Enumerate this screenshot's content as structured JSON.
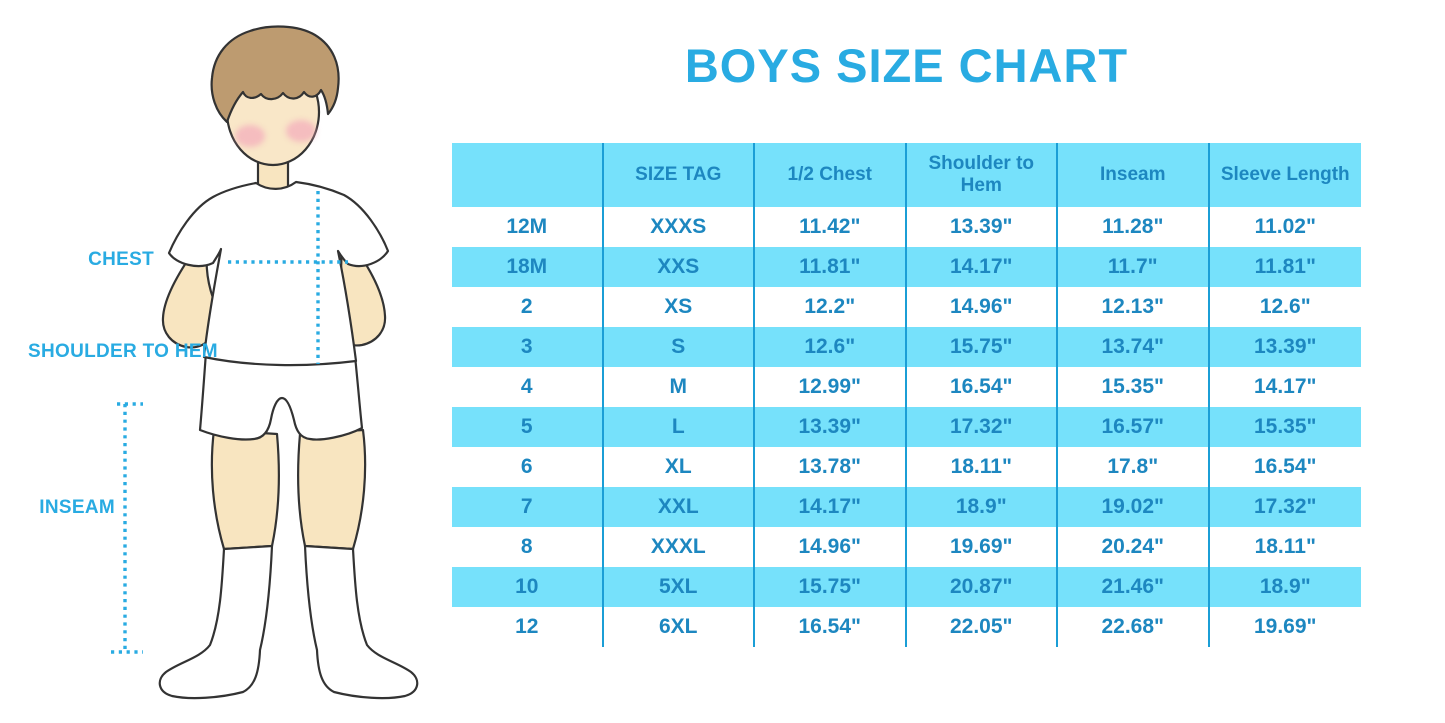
{
  "title": "BOYS SIZE CHART",
  "figure": {
    "labels": {
      "chest": "CHEST",
      "shoulder_to_hem": "SHOULDER TO HEM",
      "inseam": "INSEAM"
    }
  },
  "colors": {
    "accent_blue": "#29abe2",
    "table_text_blue": "#1d87c0",
    "row_band_blue": "#76e1fb",
    "column_separator_blue": "#1b9ed6",
    "skin": "#f8e5c0",
    "hair": "#bd9b70",
    "blush": "#f3a6ba",
    "outline": "#333333"
  },
  "chart_data": {
    "type": "table",
    "title": "BOYS SIZE CHART",
    "columns": [
      "",
      "SIZE TAG",
      "1/2 Chest",
      "Shoulder to Hem",
      "Inseam",
      "Sleeve Length"
    ],
    "rows": [
      [
        "12M",
        "XXXS",
        "11.42\"",
        "13.39\"",
        "11.28\"",
        "11.02\""
      ],
      [
        "18M",
        "XXS",
        "11.81\"",
        "14.17\"",
        "11.7\"",
        "11.81\""
      ],
      [
        "2",
        "XS",
        "12.2\"",
        "14.96\"",
        "12.13\"",
        "12.6\""
      ],
      [
        "3",
        "S",
        "12.6\"",
        "15.75\"",
        "13.74\"",
        "13.39\""
      ],
      [
        "4",
        "M",
        "12.99\"",
        "16.54\"",
        "15.35\"",
        "14.17\""
      ],
      [
        "5",
        "L",
        "13.39\"",
        "17.32\"",
        "16.57\"",
        "15.35\""
      ],
      [
        "6",
        "XL",
        "13.78\"",
        "18.11\"",
        "17.8\"",
        "16.54\""
      ],
      [
        "7",
        "XXL",
        "14.17\"",
        "18.9\"",
        "19.02\"",
        "17.32\""
      ],
      [
        "8",
        "XXXL",
        "14.96\"",
        "19.69\"",
        "20.24\"",
        "18.11\""
      ],
      [
        "10",
        "5XL",
        "15.75\"",
        "20.87\"",
        "21.46\"",
        "18.9\""
      ],
      [
        "12",
        "6XL",
        "16.54\"",
        "22.05\"",
        "22.68\"",
        "19.69\""
      ]
    ]
  }
}
